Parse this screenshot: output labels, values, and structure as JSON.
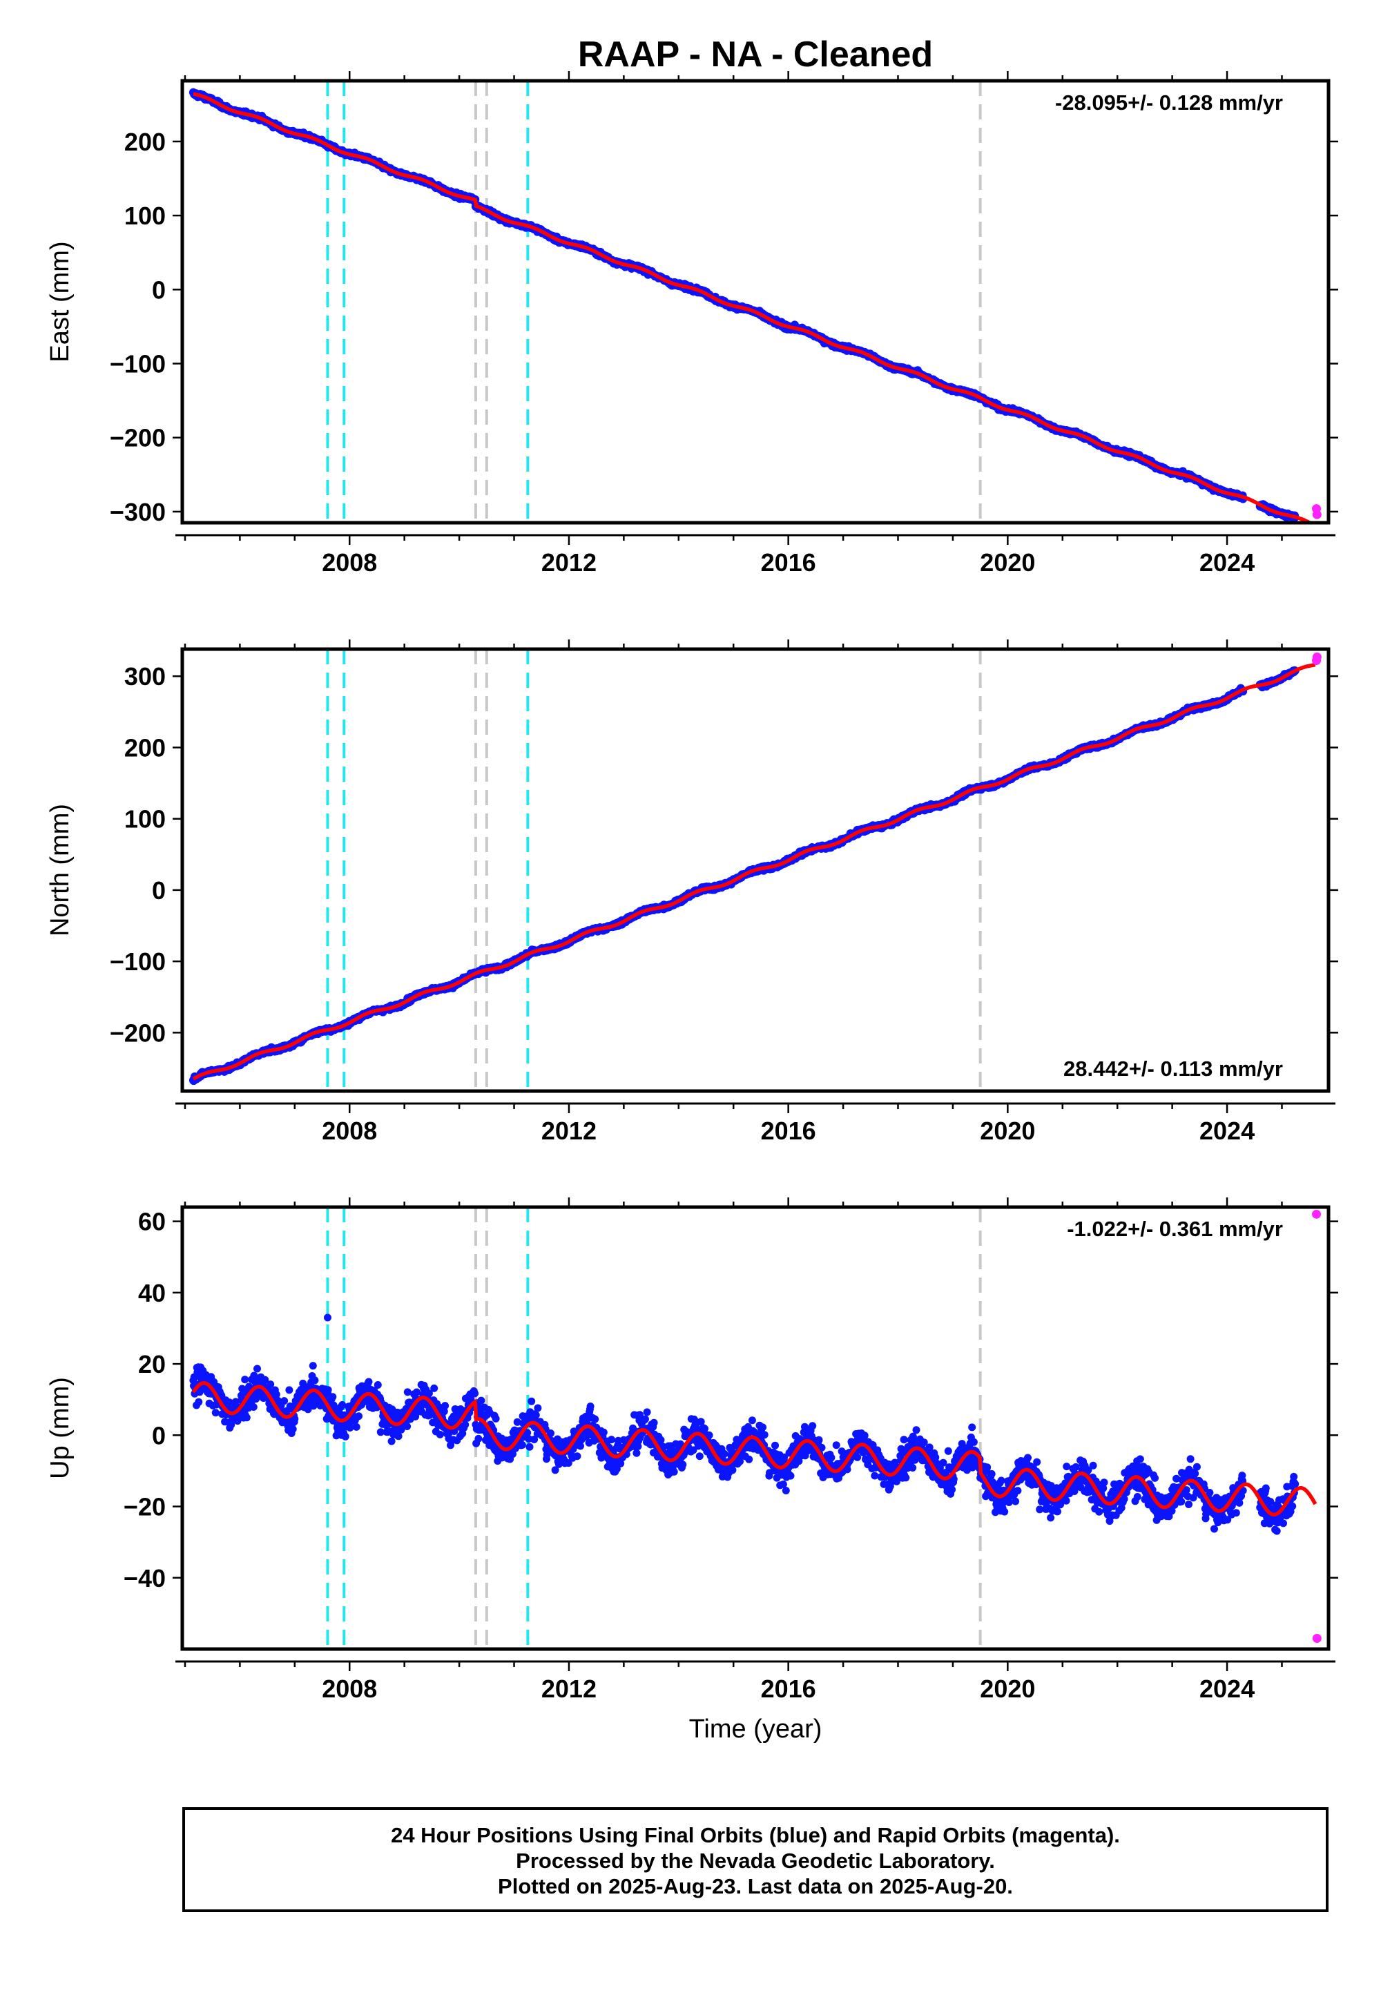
{
  "title": "RAAP  - NA - Cleaned",
  "colors": {
    "data": "#0a14ff",
    "rapid": "#ff22ff",
    "model": "#ff0000",
    "equipment_change": "#22e6ee",
    "other_event": "#c8c8c8",
    "frame": "#000000"
  },
  "chart_data": [
    {
      "type": "scatter",
      "name": "east",
      "ylabel": "East (mm)",
      "xlabel": "",
      "rate_text": "-28.095+/- 0.128 mm/yr",
      "rate_position": "top-right",
      "xlim": [
        2004.95,
        2025.85
      ],
      "ylim": [
        -315,
        282
      ],
      "yticks": [
        200,
        100,
        0,
        -100,
        -200,
        -300
      ],
      "ytick_labels": [
        "200",
        "100",
        "0",
        "−100",
        "−200",
        "−300"
      ],
      "xticks": [
        2008,
        2012,
        2016,
        2020,
        2024
      ],
      "xtick_labels": [
        "2008",
        "2012",
        "2016",
        "2020",
        "2024"
      ],
      "trend": {
        "rate": -28.095,
        "value_at_2005": 268,
        "noise": 2.0
      },
      "offsets": [
        {
          "year": 2010.3,
          "mm": -8
        }
      ],
      "seasonal_amplitude": 2.0,
      "data_range": [
        2005.15,
        2025.25
      ],
      "gaps": [
        [
          2024.3,
          2024.6
        ]
      ],
      "rapid_points": [
        {
          "x": 2025.63,
          "y": -296
        },
        {
          "x": 2025.64,
          "y": -304
        }
      ],
      "grid": false
    },
    {
      "type": "scatter",
      "name": "north",
      "ylabel": "North (mm)",
      "xlabel": "",
      "rate_text": "28.442+/- 0.113 mm/yr",
      "rate_position": "bottom-right",
      "xlim": [
        2004.95,
        2025.85
      ],
      "ylim": [
        -282,
        338
      ],
      "yticks": [
        300,
        200,
        100,
        0,
        -100,
        -200
      ],
      "ytick_labels": [
        "300",
        "200",
        "100",
        "0",
        "−100",
        "−200"
      ],
      "xticks": [
        2008,
        2012,
        2016,
        2020,
        2024
      ],
      "xtick_labels": [
        "2008",
        "2012",
        "2016",
        "2020",
        "2024"
      ],
      "trend": {
        "rate": 28.442,
        "value_at_2005": -270,
        "noise": 2.0
      },
      "offsets": [],
      "seasonal_amplitude": 2.5,
      "data_range": [
        2005.15,
        2025.25
      ],
      "gaps": [
        [
          2024.3,
          2024.6
        ]
      ],
      "rapid_points": [
        {
          "x": 2025.63,
          "y": 322
        },
        {
          "x": 2025.64,
          "y": 327
        }
      ],
      "grid": false
    },
    {
      "type": "scatter",
      "name": "up",
      "ylabel": "Up (mm)",
      "xlabel": "Time (year)",
      "rate_text": "-1.022+/- 0.361 mm/yr",
      "rate_position": "top-right",
      "xlim": [
        2004.95,
        2025.85
      ],
      "ylim": [
        -60,
        64
      ],
      "yticks": [
        60,
        40,
        20,
        0,
        -20,
        -40
      ],
      "ytick_labels": [
        "60",
        "40",
        "20",
        "0",
        "−20",
        "−40"
      ],
      "xticks": [
        2008,
        2012,
        2016,
        2020,
        2024
      ],
      "xtick_labels": [
        "2008",
        "2012",
        "2016",
        "2020",
        "2024"
      ],
      "trend": {
        "rate": -1.022,
        "value_at_2005": 11,
        "noise": 3.2
      },
      "offsets": [
        {
          "year": 2010.3,
          "mm": -5
        },
        {
          "year": 2019.5,
          "mm": -4
        }
      ],
      "seasonal_amplitude": 4.0,
      "data_range": [
        2005.15,
        2025.25
      ],
      "gaps": [
        [
          2024.3,
          2024.6
        ]
      ],
      "outliers": [
        {
          "x": 2007.6,
          "y": 33
        }
      ],
      "rapid_points": [
        {
          "x": 2025.63,
          "y": 62
        },
        {
          "x": 2025.64,
          "y": -57
        }
      ],
      "grid": false
    }
  ],
  "event_lines": {
    "equipment_change": [
      2007.6,
      2007.9,
      2011.25
    ],
    "other_event": [
      2010.3,
      2010.5,
      2019.5
    ]
  },
  "footer": {
    "line1": "24 Hour Positions Using Final Orbits (blue) and Rapid Orbits (magenta).",
    "line2": "Processed by the Nevada Geodetic Laboratory.",
    "line3": "Plotted on 2025-Aug-23. Last data on 2025-Aug-20."
  }
}
